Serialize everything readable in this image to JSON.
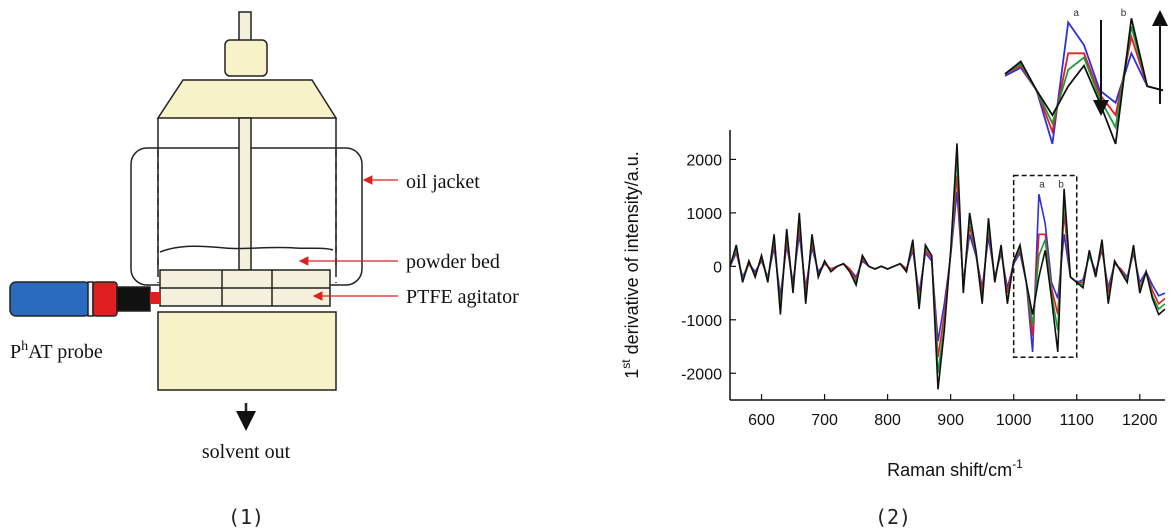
{
  "diagram": {
    "labels": {
      "oil_jacket": "oil jacket",
      "powder_bed": "powder bed",
      "ptfe_agitator": "PTFE agitator",
      "probe": [
        "P",
        "h",
        "AT probe"
      ],
      "solvent_out": "solvent out"
    },
    "caption": "(1)"
  },
  "chart_data": {
    "type": "line",
    "caption": "(2)",
    "x_label": [
      "Raman shift/cm",
      "-1"
    ],
    "y_label": [
      "1",
      "st",
      " derivative of intensity/a.u."
    ],
    "xlim": [
      550,
      1240
    ],
    "xticks": [
      600,
      700,
      800,
      900,
      1000,
      1100,
      1200
    ],
    "ylim": [
      -2500,
      2550
    ],
    "yticks": [
      -2000,
      -1000,
      0,
      1000,
      2000
    ],
    "zoom_box": {
      "xlim": [
        1000,
        1100
      ],
      "ylim": [
        -1700,
        1700
      ]
    },
    "annotations": [
      {
        "text": "a",
        "x": 1045
      },
      {
        "text": "b",
        "x": 1075
      }
    ],
    "x": [
      550,
      560,
      570,
      580,
      590,
      600,
      610,
      620,
      630,
      640,
      650,
      660,
      670,
      680,
      690,
      700,
      710,
      720,
      730,
      740,
      750,
      760,
      770,
      780,
      790,
      800,
      810,
      820,
      830,
      840,
      850,
      860,
      870,
      880,
      890,
      900,
      910,
      920,
      930,
      940,
      950,
      960,
      970,
      980,
      990,
      1000,
      1010,
      1020,
      1030,
      1040,
      1050,
      1060,
      1070,
      1080,
      1090,
      1100,
      1110,
      1120,
      1130,
      1140,
      1150,
      1160,
      1170,
      1180,
      1190,
      1200,
      1210,
      1220,
      1230,
      1240
    ],
    "series": [
      {
        "color": "#2f2fe0",
        "values": [
          0,
          250,
          -200,
          50,
          -100,
          100,
          -200,
          350,
          -550,
          400,
          -300,
          600,
          -400,
          350,
          -100,
          50,
          -50,
          0,
          50,
          -50,
          -200,
          100,
          0,
          -50,
          0,
          -50,
          0,
          50,
          -50,
          300,
          -500,
          250,
          100,
          -1400,
          -700,
          200,
          1400,
          -300,
          600,
          200,
          -400,
          550,
          -200,
          250,
          -400,
          50,
          250,
          -300,
          -1600,
          1350,
          800,
          -300,
          -600,
          600,
          -200,
          -300,
          -250,
          200,
          -100,
          300,
          -400,
          50,
          -50,
          -200,
          250,
          -300,
          -100,
          -350,
          -550,
          -500
        ]
      },
      {
        "color": "#e02020",
        "values": [
          0,
          300,
          -250,
          50,
          -150,
          150,
          -250,
          450,
          -700,
          500,
          -400,
          750,
          -500,
          450,
          -150,
          50,
          -50,
          0,
          50,
          -50,
          -250,
          150,
          0,
          -50,
          0,
          -50,
          0,
          50,
          -50,
          350,
          -600,
          300,
          150,
          -1700,
          -900,
          250,
          1700,
          -400,
          750,
          250,
          -500,
          700,
          -250,
          300,
          -500,
          100,
          300,
          -300,
          -1300,
          600,
          600,
          -400,
          -900,
          1000,
          -200,
          -300,
          -300,
          250,
          -150,
          350,
          -500,
          50,
          -50,
          -250,
          300,
          -400,
          -100,
          -450,
          -700,
          -600
        ]
      },
      {
        "color": "#1e9a3a",
        "values": [
          0,
          350,
          -250,
          100,
          -200,
          200,
          -250,
          550,
          -800,
          650,
          -450,
          900,
          -650,
          550,
          -200,
          100,
          -100,
          0,
          50,
          -100,
          -300,
          200,
          0,
          -50,
          0,
          -50,
          0,
          50,
          -100,
          450,
          -700,
          350,
          200,
          -2000,
          -1100,
          250,
          2050,
          -450,
          900,
          250,
          -650,
          800,
          -250,
          350,
          -650,
          100,
          350,
          -300,
          -1100,
          200,
          500,
          -500,
          -1200,
          1250,
          -200,
          -300,
          -350,
          250,
          -200,
          450,
          -650,
          100,
          -100,
          -250,
          350,
          -450,
          -100,
          -550,
          -800,
          -700
        ]
      },
      {
        "color": "#111111",
        "values": [
          0,
          400,
          -300,
          100,
          -200,
          200,
          -300,
          600,
          -900,
          700,
          -500,
          1000,
          -700,
          600,
          -200,
          100,
          -100,
          0,
          50,
          -100,
          -350,
          200,
          0,
          -50,
          0,
          -50,
          0,
          50,
          -100,
          500,
          -800,
          400,
          200,
          -2300,
          -1200,
          300,
          2300,
          -500,
          1000,
          300,
          -700,
          900,
          -300,
          400,
          -700,
          100,
          400,
          -300,
          -900,
          -200,
          300,
          -600,
          -1600,
          1450,
          -200,
          -300,
          -400,
          300,
          -200,
          500,
          -700,
          100,
          -100,
          -300,
          400,
          -500,
          -100,
          -600,
          -900,
          -800
        ]
      }
    ]
  }
}
